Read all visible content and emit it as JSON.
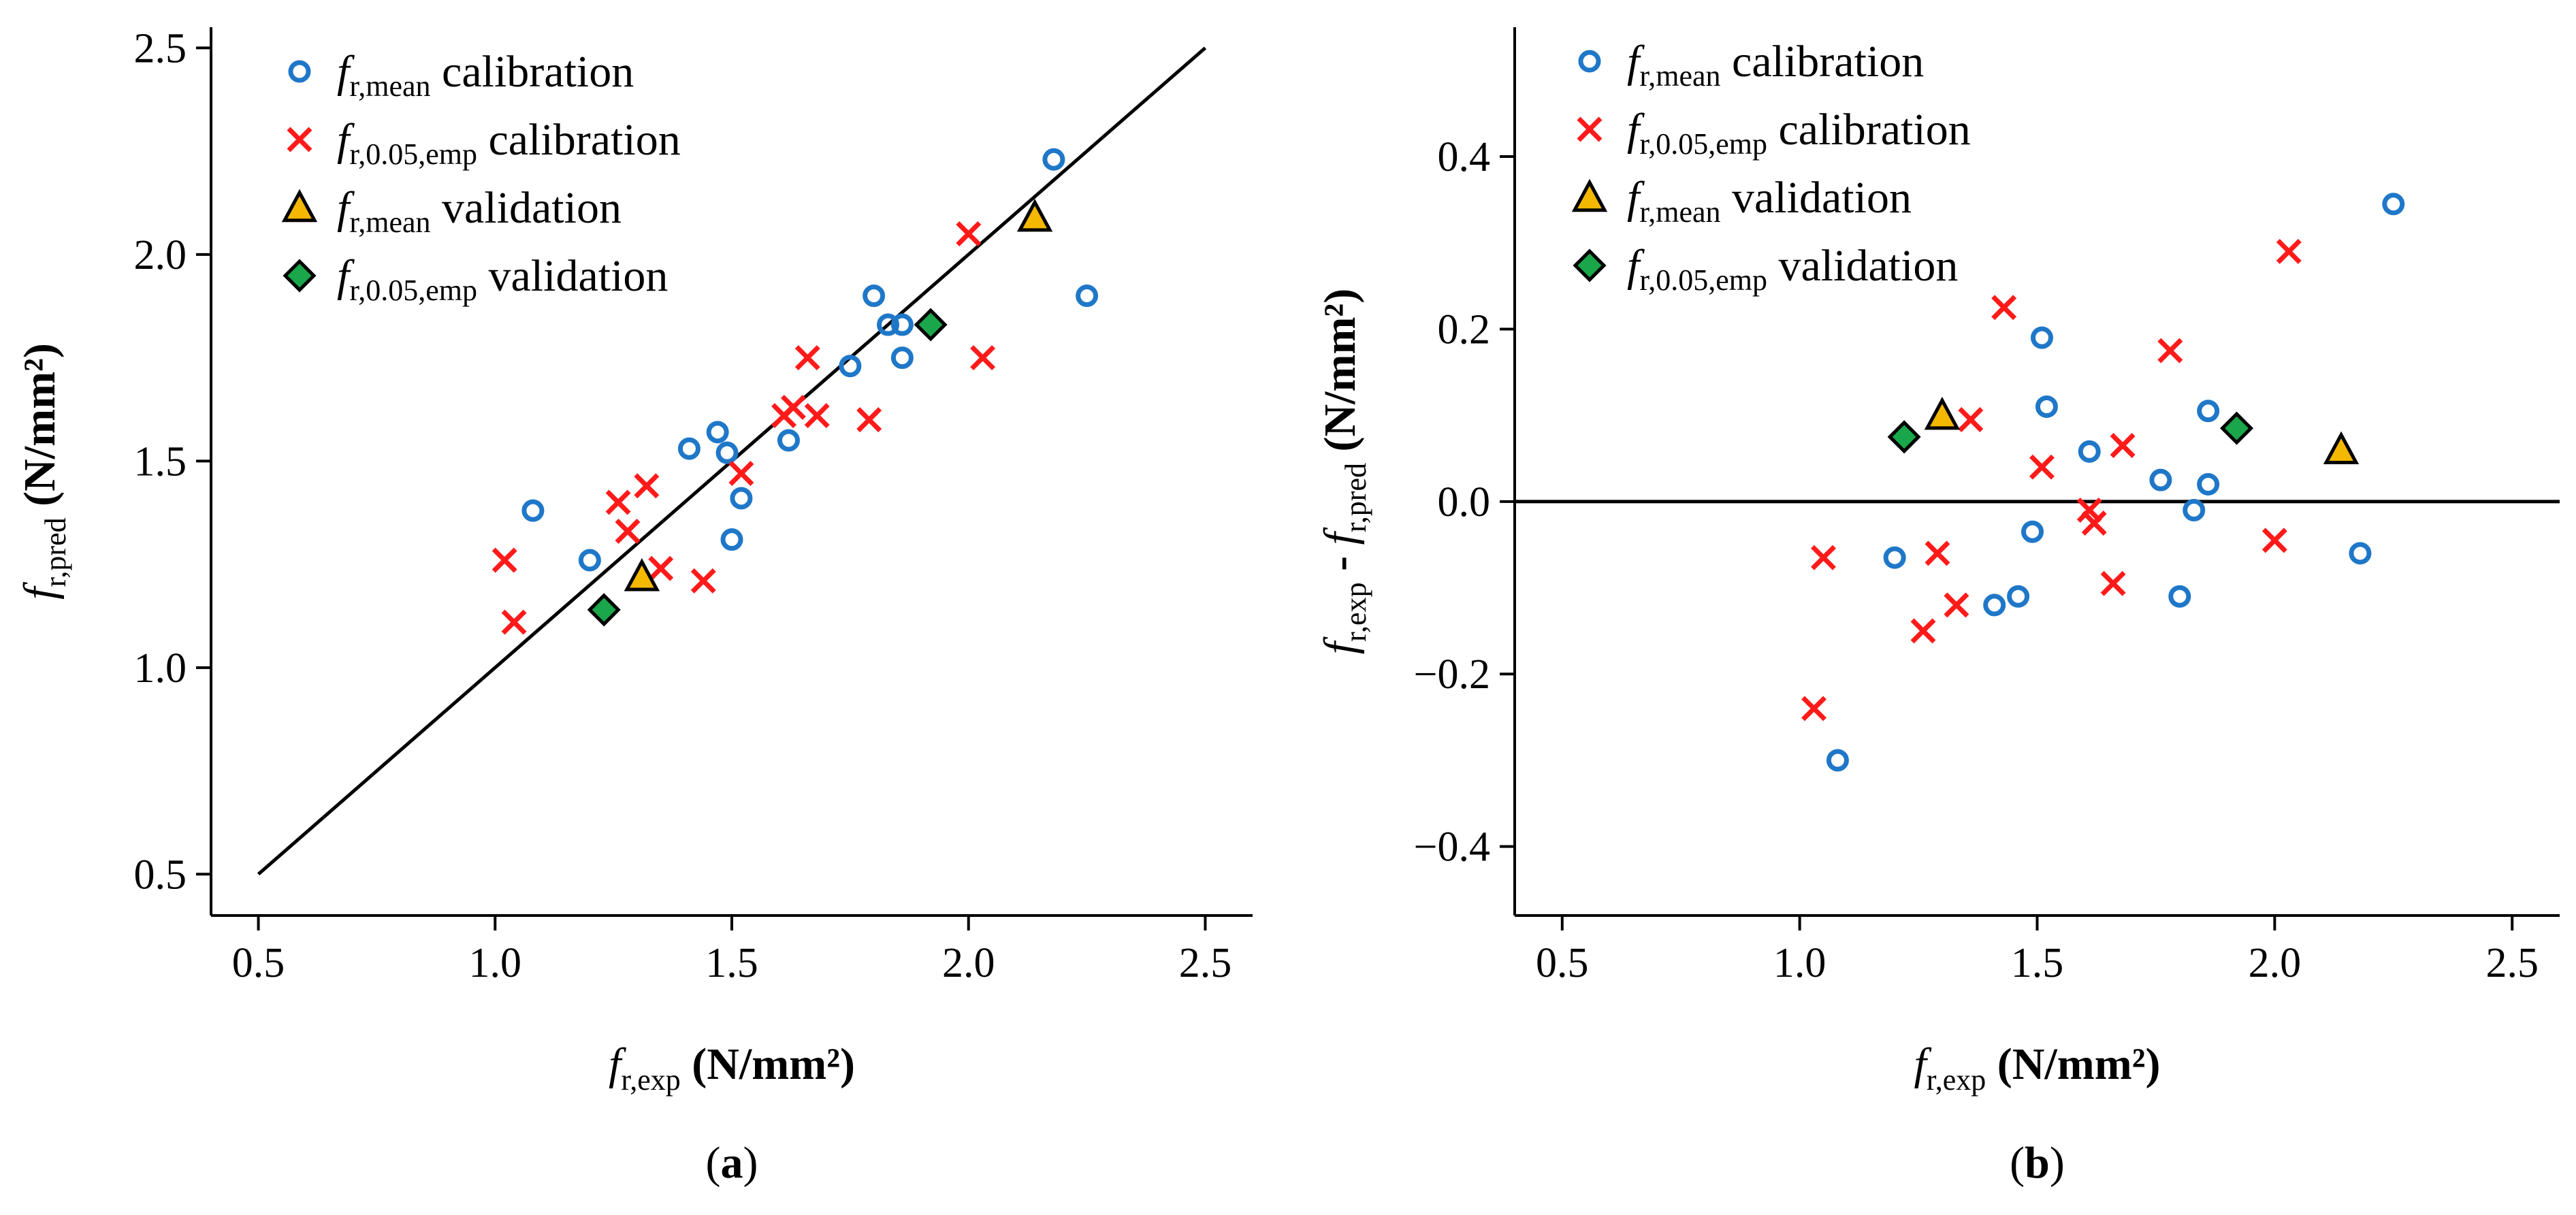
{
  "colors": {
    "mean_calibration": "#1f77c8",
    "emp_calibration": "#ff1a1a",
    "mean_validation": "#f5b800",
    "emp_validation": "#1aa64a",
    "line": "#000000"
  },
  "legend": [
    {
      "key": "mean_cal",
      "f": "f",
      "sub": "r,mean",
      "text": " calibration",
      "marker": "circle",
      "color": "#1f77c8"
    },
    {
      "key": "emp_cal",
      "f": "f",
      "sub": "r,0.05,emp",
      "text": " calibration",
      "marker": "x",
      "color": "#ff1a1a"
    },
    {
      "key": "mean_val",
      "f": "f",
      "sub": "r,mean",
      "text": " validation",
      "marker": "triangle",
      "color": "#f5b800"
    },
    {
      "key": "emp_val",
      "f": "f",
      "sub": "r,0.05,emp",
      "text": " validation",
      "marker": "diamond",
      "color": "#1aa64a"
    }
  ],
  "chart_data": [
    {
      "type": "scatter",
      "panel_label": "a",
      "xlabel": {
        "f": "f",
        "sub": "r,exp",
        "unit": " (N/mm²)"
      },
      "ylabel": {
        "f": "f",
        "sub": "r,pred",
        "unit": " (N/mm²)"
      },
      "xlim": [
        0.4,
        2.6
      ],
      "ylim": [
        0.4,
        2.55
      ],
      "xticks": [
        "0.5",
        "1.0",
        "1.5",
        "2.0",
        "2.5"
      ],
      "yticks": [
        "0.5",
        "1.0",
        "1.5",
        "2.0",
        "2.5"
      ],
      "reference_line": "y = x",
      "series": [
        {
          "name": "f r,mean calibration",
          "marker": "circle",
          "points": [
            [
              1.08,
              1.38
            ],
            [
              1.2,
              1.26
            ],
            [
              1.41,
              1.53
            ],
            [
              1.47,
              1.57
            ],
            [
              1.49,
              1.52
            ],
            [
              1.5,
              1.31
            ],
            [
              1.52,
              1.41
            ],
            [
              1.62,
              1.55
            ],
            [
              1.75,
              1.73
            ],
            [
              1.8,
              1.9
            ],
            [
              1.83,
              1.83
            ],
            [
              1.86,
              1.83
            ],
            [
              1.86,
              1.75
            ],
            [
              2.18,
              2.23
            ],
            [
              2.25,
              1.9
            ]
          ]
        },
        {
          "name": "f r,0.05,emp calibration",
          "marker": "x",
          "points": [
            [
              1.02,
              1.26
            ],
            [
              1.04,
              1.11
            ],
            [
              1.26,
              1.4
            ],
            [
              1.28,
              1.33
            ],
            [
              1.32,
              1.44
            ],
            [
              1.35,
              1.24
            ],
            [
              1.44,
              1.21
            ],
            [
              1.52,
              1.47
            ],
            [
              1.61,
              1.61
            ],
            [
              1.63,
              1.63
            ],
            [
              1.66,
              1.75
            ],
            [
              1.68,
              1.61
            ],
            [
              1.79,
              1.6
            ],
            [
              2.0,
              2.05
            ],
            [
              2.03,
              1.75
            ]
          ]
        },
        {
          "name": "f r,mean validation",
          "marker": "triangle",
          "points": [
            [
              1.31,
              1.22
            ],
            [
              2.14,
              2.09
            ]
          ]
        },
        {
          "name": "f r,0.05,emp validation",
          "marker": "diamond",
          "points": [
            [
              1.23,
              1.14
            ],
            [
              1.92,
              1.83
            ]
          ]
        }
      ]
    },
    {
      "type": "scatter",
      "panel_label": "b",
      "xlabel": {
        "f": "f",
        "sub": "r,exp",
        "unit": " (N/mm²)"
      },
      "ylabel": {
        "f1": "f",
        "sub1": "r,exp",
        "mid": " - ",
        "f2": "f",
        "sub2": "r,pred",
        "unit": " (N/mm²)"
      },
      "xlim": [
        0.4,
        2.6
      ],
      "ylim": [
        -0.48,
        0.55
      ],
      "xticks": [
        "0.5",
        "1.0",
        "1.5",
        "2.0",
        "2.5"
      ],
      "yticks": [
        "−0.4",
        "−0.2",
        "0.0",
        "0.2",
        "0.4"
      ],
      "reference_line": "y = 0",
      "series": [
        {
          "name": "f r,mean calibration",
          "marker": "circle",
          "points": [
            [
              1.08,
              -0.3
            ],
            [
              1.2,
              -0.065
            ],
            [
              1.41,
              -0.12
            ],
            [
              1.46,
              -0.11
            ],
            [
              1.49,
              -0.035
            ],
            [
              1.51,
              0.19
            ],
            [
              1.52,
              0.11
            ],
            [
              1.61,
              0.058
            ],
            [
              1.76,
              0.025
            ],
            [
              1.8,
              -0.11
            ],
            [
              1.83,
              -0.01
            ],
            [
              1.86,
              0.02
            ],
            [
              1.86,
              0.105
            ],
            [
              2.18,
              -0.06
            ],
            [
              2.25,
              0.345
            ]
          ]
        },
        {
          "name": "f r,0.05,emp calibration",
          "marker": "x",
          "points": [
            [
              1.03,
              -0.24
            ],
            [
              1.05,
              -0.065
            ],
            [
              1.26,
              -0.15
            ],
            [
              1.29,
              -0.06
            ],
            [
              1.33,
              -0.12
            ],
            [
              1.36,
              0.095
            ],
            [
              1.43,
              0.225
            ],
            [
              1.51,
              0.04
            ],
            [
              1.61,
              -0.01
            ],
            [
              1.62,
              -0.025
            ],
            [
              1.66,
              -0.095
            ],
            [
              1.68,
              0.065
            ],
            [
              1.78,
              0.175
            ],
            [
              2.0,
              -0.045
            ],
            [
              2.03,
              0.29
            ]
          ]
        },
        {
          "name": "f r,mean validation",
          "marker": "triangle",
          "points": [
            [
              1.3,
              0.1
            ],
            [
              2.14,
              0.06
            ]
          ]
        },
        {
          "name": "f r,0.05,emp validation",
          "marker": "diamond",
          "points": [
            [
              1.22,
              0.075
            ],
            [
              1.92,
              0.085
            ]
          ]
        }
      ]
    }
  ]
}
